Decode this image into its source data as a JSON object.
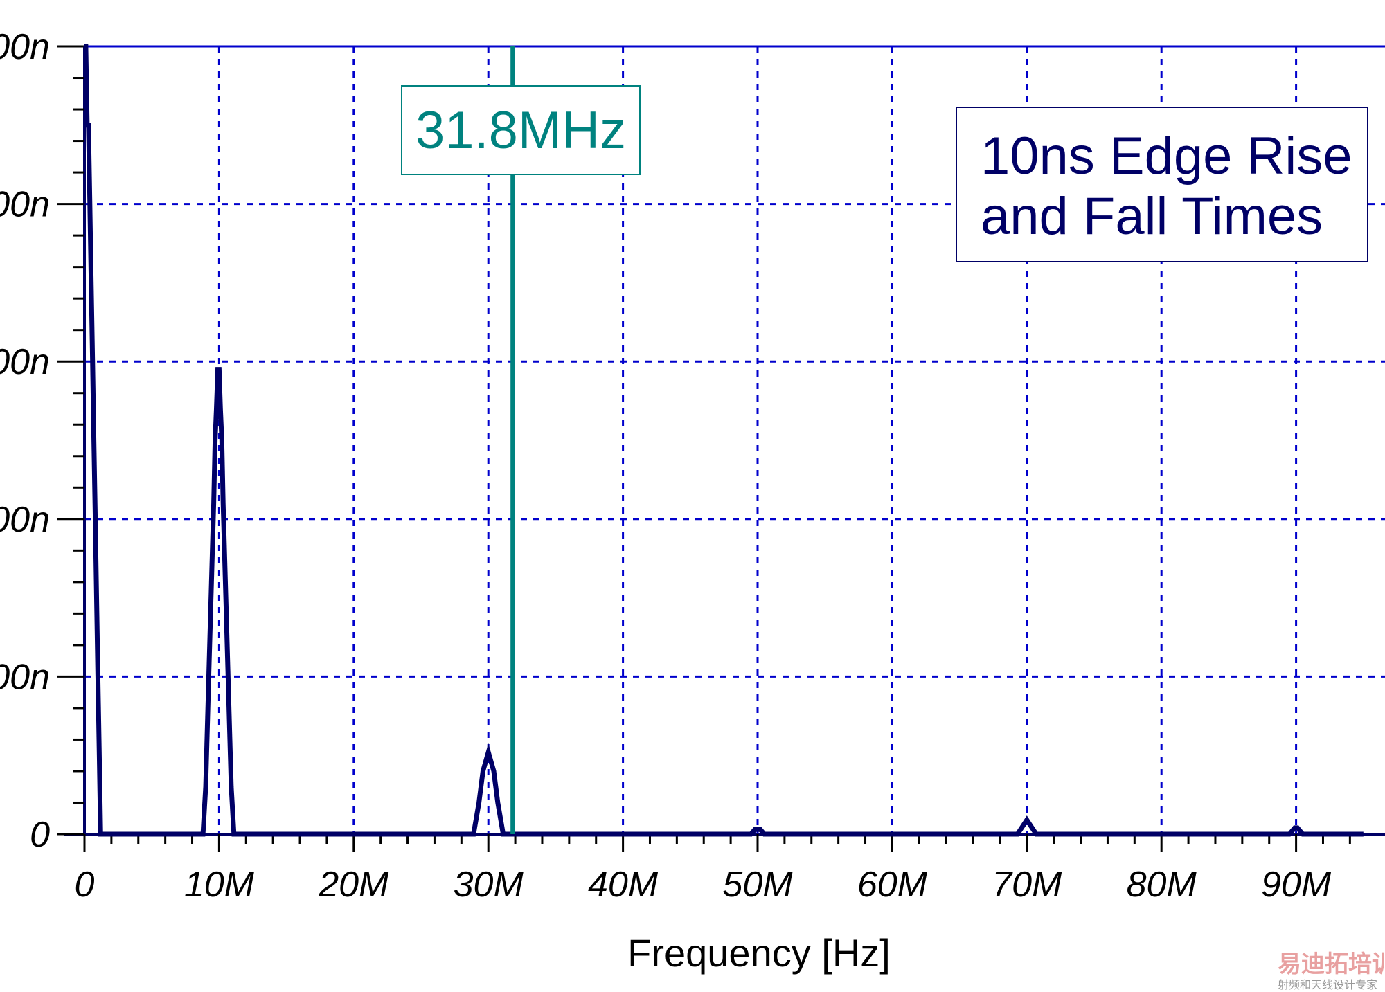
{
  "chart_data": {
    "type": "line",
    "title": "",
    "xlabel": "Frequency [Hz]",
    "ylabel": "",
    "xlim": [
      -1000000,
      95000000
    ],
    "ylim": [
      0,
      500
    ],
    "y_unit": "n",
    "grid": true,
    "x_ticks": [
      {
        "value": 0,
        "label": "0"
      },
      {
        "value": 10000000,
        "label": "10M"
      },
      {
        "value": 20000000,
        "label": "20M"
      },
      {
        "value": 30000000,
        "label": "30M"
      },
      {
        "value": 40000000,
        "label": "40M"
      },
      {
        "value": 50000000,
        "label": "50M"
      },
      {
        "value": 60000000,
        "label": "60M"
      },
      {
        "value": 70000000,
        "label": "70M"
      },
      {
        "value": 80000000,
        "label": "80M"
      },
      {
        "value": 90000000,
        "label": "90M"
      }
    ],
    "y_ticks": [
      {
        "value": 0,
        "label": "0"
      },
      {
        "value": 100,
        "label": "00n"
      },
      {
        "value": 200,
        "label": "00n"
      },
      {
        "value": 300,
        "label": "00n"
      },
      {
        "value": 400,
        "label": "00n"
      },
      {
        "value": 500,
        "label": "00n"
      }
    ],
    "series": [
      {
        "color": "#000066",
        "points": [
          [
            0,
            500
          ],
          [
            100000,
            500
          ],
          [
            200000,
            450
          ],
          [
            300000,
            450
          ],
          [
            400000,
            400
          ],
          [
            500000,
            350
          ],
          [
            600000,
            300
          ],
          [
            700000,
            250
          ],
          [
            800000,
            200
          ],
          [
            900000,
            150
          ],
          [
            1000000,
            100
          ],
          [
            1100000,
            50
          ],
          [
            1200000,
            0
          ],
          [
            8800000,
            0
          ],
          [
            9000000,
            30
          ],
          [
            9200000,
            90
          ],
          [
            9400000,
            150
          ],
          [
            9600000,
            210
          ],
          [
            9700000,
            250
          ],
          [
            9800000,
            270
          ],
          [
            9900000,
            295
          ],
          [
            10000000,
            295
          ],
          [
            10100000,
            270
          ],
          [
            10200000,
            250
          ],
          [
            10300000,
            210
          ],
          [
            10500000,
            150
          ],
          [
            10700000,
            90
          ],
          [
            10900000,
            30
          ],
          [
            11100000,
            0
          ],
          [
            28900000,
            0
          ],
          [
            29300000,
            20
          ],
          [
            29600000,
            40
          ],
          [
            30000000,
            52
          ],
          [
            30400000,
            40
          ],
          [
            30700000,
            20
          ],
          [
            31100000,
            0
          ],
          [
            49500000,
            0
          ],
          [
            49800000,
            3
          ],
          [
            50000000,
            3
          ],
          [
            50200000,
            3
          ],
          [
            50500000,
            0
          ],
          [
            69300000,
            0
          ],
          [
            70000000,
            9
          ],
          [
            70700000,
            0
          ],
          [
            89500000,
            0
          ],
          [
            89900000,
            4
          ],
          [
            90100000,
            4
          ],
          [
            90500000,
            0
          ],
          [
            95000000,
            0
          ]
        ]
      }
    ],
    "markers": [
      {
        "x": 31800000,
        "label": "31.8MHz",
        "color": "#00827f"
      }
    ],
    "annotations": [
      {
        "lines": [
          "10ns Edge Rise",
          "and Fall Times"
        ],
        "color": "#000066"
      }
    ],
    "colors": {
      "grid": "#0000cc",
      "frame": "#0000cc",
      "series": "#000066",
      "marker": "#00827f"
    }
  },
  "watermark": {
    "brand": "易迪拓培训",
    "tagline": "射频和天线设计专家"
  }
}
